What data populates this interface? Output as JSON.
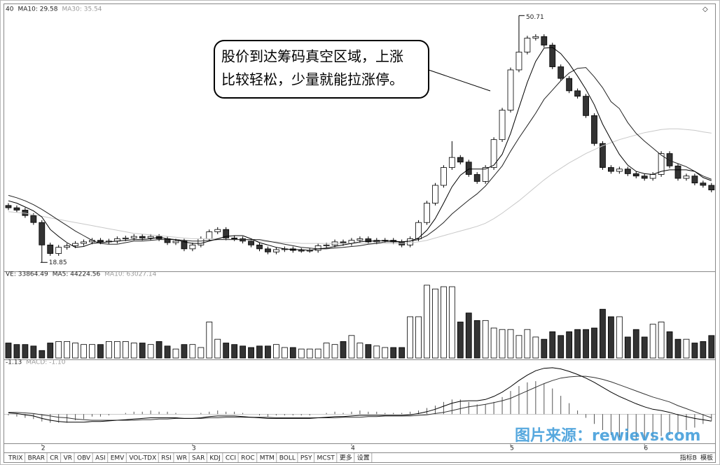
{
  "chart_data": {
    "type": "candlestick",
    "categories": [
      null,
      null,
      null,
      null,
      "2",
      null,
      null,
      null,
      null,
      null,
      null,
      null,
      null,
      null,
      null,
      null,
      null,
      null,
      null,
      null,
      null,
      null,
      "3",
      null,
      null,
      null,
      null,
      null,
      null,
      null,
      null,
      null,
      null,
      null,
      null,
      null,
      null,
      null,
      null,
      null,
      null,
      "4",
      null,
      null,
      null,
      null,
      null,
      null,
      null,
      null,
      null,
      null,
      null,
      null,
      null,
      null,
      null,
      null,
      null,
      null,
      "5",
      null,
      null,
      null,
      null,
      null,
      null,
      null,
      null,
      null,
      null,
      null,
      null,
      null,
      null,
      null,
      "6",
      null,
      null,
      null,
      null,
      null,
      null,
      null,
      null
    ],
    "open": [
      26.2,
      25.9,
      25.6,
      24.9,
      24.0,
      21.1,
      20.0,
      20.8,
      21.0,
      21.3,
      21.5,
      21.7,
      21.5,
      21.6,
      21.9,
      22.0,
      22.2,
      22.0,
      22.2,
      21.9,
      21.4,
      21.6,
      20.6,
      21.1,
      21.9,
      22.8,
      23.1,
      22.0,
      21.9,
      21.6,
      21.1,
      20.6,
      20.2,
      20.5,
      20.6,
      20.4,
      20.4,
      20.4,
      21.0,
      21.1,
      21.5,
      21.3,
      21.7,
      21.9,
      21.5,
      21.7,
      21.7,
      21.5,
      21.1,
      21.9,
      24.0,
      26.5,
      28.8,
      31.1,
      32.4,
      31.8,
      30.2,
      29.3,
      31.1,
      34.7,
      38.5,
      43.7,
      46.0,
      47.8,
      48.0,
      46.9,
      44.1,
      42.6,
      41.0,
      40.3,
      37.8,
      34.2,
      31.1,
      30.6,
      30.9,
      30.3,
      30.0,
      29.7,
      30.2,
      32.9,
      31.3,
      29.7,
      30.0,
      29.1,
      28.8
    ],
    "high": [
      26.5,
      26.2,
      25.9,
      25.2,
      24.3,
      21.4,
      21.1,
      21.3,
      21.6,
      21.8,
      22.0,
      22.0,
      21.9,
      22.2,
      22.3,
      22.5,
      22.5,
      22.5,
      22.5,
      22.2,
      21.9,
      21.9,
      21.4,
      22.2,
      23.1,
      23.4,
      23.4,
      22.3,
      22.2,
      21.9,
      21.4,
      20.9,
      20.8,
      20.9,
      20.9,
      20.7,
      20.7,
      21.3,
      21.4,
      21.8,
      21.8,
      22.0,
      22.2,
      22.2,
      22.0,
      22.0,
      22.0,
      21.8,
      22.2,
      24.3,
      26.8,
      29.1,
      31.4,
      34.5,
      32.7,
      32.1,
      30.5,
      31.4,
      35.0,
      38.8,
      44.0,
      50.71,
      48.1,
      48.3,
      48.3,
      47.2,
      44.4,
      42.9,
      41.3,
      40.6,
      38.1,
      34.5,
      31.4,
      31.2,
      31.2,
      30.6,
      30.3,
      30.5,
      33.2,
      33.2,
      31.6,
      30.3,
      30.3,
      29.4,
      29.1
    ],
    "low": [
      25.6,
      25.3,
      24.6,
      23.7,
      18.85,
      19.7,
      19.7,
      20.5,
      20.7,
      21.0,
      21.2,
      21.2,
      21.2,
      21.3,
      21.6,
      21.7,
      21.7,
      21.7,
      21.6,
      21.1,
      21.1,
      20.3,
      20.3,
      20.8,
      21.6,
      22.5,
      21.7,
      21.6,
      21.3,
      20.8,
      20.3,
      19.9,
      19.9,
      20.2,
      20.1,
      20.1,
      20.1,
      20.1,
      20.7,
      20.8,
      21.0,
      21.0,
      21.4,
      21.2,
      21.2,
      21.4,
      21.2,
      20.8,
      20.8,
      21.6,
      23.7,
      26.2,
      28.5,
      30.8,
      31.5,
      29.9,
      29.0,
      29.0,
      30.8,
      34.4,
      38.2,
      43.4,
      45.7,
      47.5,
      46.6,
      43.8,
      42.3,
      40.7,
      40.0,
      37.5,
      33.9,
      30.8,
      30.3,
      30.3,
      30.0,
      29.7,
      29.4,
      29.4,
      29.9,
      31.0,
      29.4,
      29.4,
      28.8,
      28.5,
      27.9
    ],
    "close": [
      25.9,
      25.6,
      24.9,
      24.0,
      21.1,
      20.0,
      20.8,
      21.0,
      21.3,
      21.5,
      21.7,
      21.5,
      21.6,
      21.9,
      22.0,
      22.2,
      22.0,
      22.2,
      21.9,
      21.4,
      21.6,
      20.6,
      21.1,
      21.9,
      22.8,
      23.1,
      22.0,
      21.9,
      21.6,
      21.1,
      20.6,
      20.2,
      20.5,
      20.6,
      20.4,
      20.4,
      20.4,
      21.0,
      21.1,
      21.5,
      21.3,
      21.7,
      21.9,
      21.5,
      21.7,
      21.7,
      21.5,
      21.1,
      21.9,
      24.0,
      26.5,
      28.8,
      31.1,
      32.4,
      31.8,
      30.2,
      29.3,
      31.1,
      34.7,
      38.5,
      43.7,
      46.0,
      47.8,
      48.0,
      46.9,
      44.1,
      42.6,
      41.0,
      40.3,
      37.8,
      34.2,
      31.1,
      30.6,
      30.9,
      30.3,
      30.0,
      29.7,
      30.2,
      32.9,
      31.3,
      29.7,
      30.0,
      29.1,
      28.8,
      28.2
    ],
    "ma5": [
      26.8,
      26.5,
      26.0,
      25.5,
      24.7,
      23.1,
      22.2,
      21.4,
      20.8,
      20.9,
      21.3,
      21.4,
      21.5,
      21.6,
      21.7,
      21.8,
      21.8,
      21.9,
      22.1,
      21.9,
      21.8,
      21.5,
      21.3,
      21.3,
      21.6,
      21.9,
      22.2,
      22.3,
      22.3,
      21.9,
      21.4,
      21.1,
      20.8,
      20.6,
      20.5,
      20.5,
      20.4,
      20.6,
      20.7,
      20.9,
      21.1,
      21.3,
      21.5,
      21.6,
      21.6,
      21.7,
      21.6,
      21.5,
      21.6,
      22.0,
      23.0,
      24.5,
      26.5,
      28.6,
      30.1,
      30.9,
      30.9,
      30.9,
      31.4,
      32.8,
      35.5,
      38.8,
      42.1,
      44.8,
      46.5,
      46.6,
      45.8,
      44.5,
      42.9,
      41.2,
      39.2,
      36.7,
      34.7,
      32.8,
      31.4,
      30.6,
      30.3,
      30.2,
      30.6,
      30.8,
      30.8,
      30.8,
      30.6,
      29.8,
      29.4
    ],
    "ma10": [
      27.5,
      27.2,
      26.8,
      26.3,
      25.7,
      25.0,
      24.3,
      23.6,
      22.9,
      22.3,
      21.7,
      21.3,
      21.2,
      21.2,
      21.4,
      21.6,
      21.6,
      21.7,
      21.8,
      21.8,
      21.8,
      21.7,
      21.6,
      21.6,
      21.7,
      21.8,
      21.8,
      21.8,
      21.8,
      21.8,
      21.8,
      21.6,
      21.4,
      21.2,
      21.0,
      20.8,
      20.7,
      20.6,
      20.6,
      20.7,
      20.8,
      20.9,
      21.0,
      21.2,
      21.3,
      21.5,
      21.5,
      21.5,
      21.6,
      21.8,
      22.3,
      23.1,
      24.0,
      25.1,
      26.0,
      26.9,
      27.7,
      28.7,
      30.0,
      31.3,
      33.2,
      34.9,
      36.5,
      38.1,
      39.9,
      41.1,
      42.3,
      43.3,
      43.9,
      44.0,
      42.8,
      41.4,
      39.6,
      38.7,
      36.9,
      35.5,
      34.5,
      33.6,
      32.7,
      32.0,
      31.6,
      31.2,
      30.6,
      30.0,
      29.58
    ],
    "ma30": [
      25.4,
      25.3,
      25.2,
      25.0,
      24.8,
      24.6,
      24.4,
      24.2,
      24.0,
      23.8,
      23.6,
      23.4,
      23.2,
      23.0,
      22.8,
      22.6,
      22.5,
      22.4,
      22.3,
      22.2,
      22.1,
      22.0,
      21.9,
      21.9,
      21.9,
      21.9,
      21.8,
      21.8,
      21.8,
      21.7,
      21.6,
      21.5,
      21.5,
      21.4,
      21.4,
      21.3,
      21.3,
      21.3,
      21.3,
      21.3,
      21.3,
      21.3,
      21.3,
      21.3,
      21.3,
      21.3,
      21.3,
      21.3,
      21.4,
      21.5,
      21.7,
      22.0,
      22.3,
      22.6,
      22.9,
      23.2,
      23.5,
      23.9,
      24.5,
      25.2,
      26.0,
      26.8,
      27.7,
      28.6,
      29.5,
      30.3,
      31.0,
      31.7,
      32.3,
      32.9,
      33.4,
      33.9,
      34.3,
      34.7,
      35.0,
      35.3,
      35.6,
      35.8,
      36.0,
      36.1,
      36.1,
      36.0,
      35.9,
      35.7,
      35.54
    ],
    "ylim": [
      17.7,
      52
    ],
    "price_labels": [
      "40",
      "MA10: 29.58",
      "MA30: 35.54"
    ],
    "volume": {
      "values": [
        22600,
        20340,
        20340,
        18080,
        11300,
        22600,
        24860,
        24860,
        22600,
        20340,
        20340,
        20340,
        24860,
        24860,
        24860,
        22600,
        22600,
        20340,
        24860,
        18080,
        13560,
        20340,
        20340,
        15820,
        54240,
        28250,
        22600,
        20340,
        18080,
        15820,
        18080,
        18080,
        20340,
        15820,
        15820,
        13560,
        13560,
        13560,
        22600,
        20340,
        24860,
        33900,
        22600,
        20340,
        18080,
        15820,
        15820,
        15820,
        62150,
        62150,
        109610,
        103960,
        107350,
        107350,
        54240,
        67800,
        56500,
        56500,
        45200,
        42940,
        42940,
        33900,
        42940,
        31640,
        28250,
        39550,
        33900,
        39550,
        42940,
        42940,
        45200,
        73450,
        62150,
        62150,
        31640,
        42940,
        31640,
        50850,
        54240,
        39550,
        28250,
        28250,
        22600,
        24860,
        33864.49
      ],
      "ylim": [
        0,
        120000
      ],
      "labels": [
        "VE: 33864.49",
        "MA5: 44224.56",
        "MA10: 63027.14"
      ]
    },
    "macd": {
      "dif": [
        0.2,
        0.1,
        -0.1,
        -0.3,
        -0.7,
        -1.0,
        -1.2,
        -1.3,
        -1.3,
        -1.3,
        -1.2,
        -1.2,
        -1.1,
        -1.0,
        -0.9,
        -0.8,
        -0.7,
        -0.6,
        -0.6,
        -0.6,
        -0.6,
        -0.7,
        -0.7,
        -0.6,
        -0.4,
        -0.3,
        -0.3,
        -0.3,
        -0.4,
        -0.5,
        -0.6,
        -0.7,
        -0.7,
        -0.7,
        -0.7,
        -0.7,
        -0.7,
        -0.6,
        -0.5,
        -0.4,
        -0.4,
        -0.3,
        -0.2,
        -0.2,
        -0.2,
        -0.2,
        -0.2,
        -0.2,
        -0.1,
        0.1,
        0.4,
        0.8,
        1.3,
        1.8,
        2.1,
        2.2,
        2.2,
        2.4,
        2.9,
        3.6,
        4.5,
        5.5,
        6.4,
        7.1,
        7.5,
        7.6,
        7.4,
        7.0,
        6.5,
        5.9,
        5.2,
        4.4,
        3.6,
        2.9,
        2.3,
        1.7,
        1.2,
        0.8,
        0.6,
        0.3,
        -0.1,
        -0.4,
        -0.7,
        -0.9,
        -1.13
      ],
      "dea": [
        0.3,
        0.3,
        0.2,
        0.1,
        -0.1,
        -0.3,
        -0.5,
        -0.6,
        -0.8,
        -0.9,
        -1.0,
        -1.0,
        -1.0,
        -1.0,
        -1.0,
        -1.0,
        -0.9,
        -0.9,
        -0.8,
        -0.8,
        -0.7,
        -0.7,
        -0.7,
        -0.7,
        -0.6,
        -0.6,
        -0.5,
        -0.5,
        -0.5,
        -0.5,
        -0.5,
        -0.5,
        -0.6,
        -0.6,
        -0.6,
        -0.6,
        -0.6,
        -0.6,
        -0.6,
        -0.6,
        -0.5,
        -0.5,
        -0.5,
        -0.4,
        -0.4,
        -0.3,
        -0.3,
        -0.3,
        -0.3,
        -0.2,
        -0.1,
        0.1,
        0.3,
        0.6,
        0.9,
        1.2,
        1.4,
        1.6,
        1.9,
        2.2,
        2.6,
        3.2,
        3.8,
        4.4,
        5.0,
        5.5,
        5.9,
        6.1,
        6.2,
        6.2,
        6.0,
        5.7,
        5.3,
        4.8,
        4.3,
        3.8,
        3.3,
        2.8,
        2.4,
        2.0,
        1.4,
        0.9,
        0.4,
        -0.1,
        -0.58
      ],
      "hist": [
        -0.2,
        -0.4,
        -0.6,
        -0.8,
        -1.2,
        -1.4,
        -1.4,
        -1.4,
        -1.0,
        -0.8,
        -0.4,
        -0.4,
        -0.2,
        0,
        0.2,
        0.4,
        0.4,
        0.6,
        0.4,
        0.4,
        0.2,
        0,
        0,
        0.2,
        0.4,
        0.6,
        0.4,
        0.4,
        0.2,
        0,
        -0.2,
        -0.4,
        -0.2,
        -0.2,
        -0.2,
        -0.2,
        -0.2,
        0,
        0.2,
        0.4,
        0.2,
        0.4,
        0.6,
        0.4,
        0.4,
        0.2,
        0.2,
        0.2,
        0.4,
        0.6,
        1.0,
        1.4,
        2.0,
        2.4,
        2.4,
        2.0,
        1.6,
        1.6,
        2.0,
        2.8,
        3.8,
        4.6,
        5.2,
        5.4,
        5.0,
        4.2,
        3.0,
        1.8,
        0.6,
        -0.6,
        -1.6,
        -2.6,
        -3.4,
        -3.8,
        -4.0,
        -4.2,
        -4.2,
        -4.0,
        -3.6,
        -3.4,
        -3.0,
        -2.6,
        -2.2,
        -1.6,
        -1.1
      ],
      "ylim": [
        -5,
        8.5
      ],
      "labels": [
        "-1.13",
        "MACD: -1.10"
      ]
    }
  },
  "callout": [
    "股价到达筹码真空区域，上涨",
    "比较轻松，少量就能拉涨停。"
  ],
  "tabs": [
    "TRIX",
    "BRAR",
    "CR",
    "VR",
    "OBV",
    "ASI",
    "EMV",
    "VOL-TDX",
    "RSI",
    "WR",
    "SAR",
    "KDJ",
    "CCI",
    "ROC",
    "MTM",
    "BOLL",
    "PSY",
    "MCST",
    "更多",
    "设置"
  ],
  "right_buttons": [
    "指标B",
    "模板"
  ],
  "watermark": "图片来源：rewievs.com"
}
